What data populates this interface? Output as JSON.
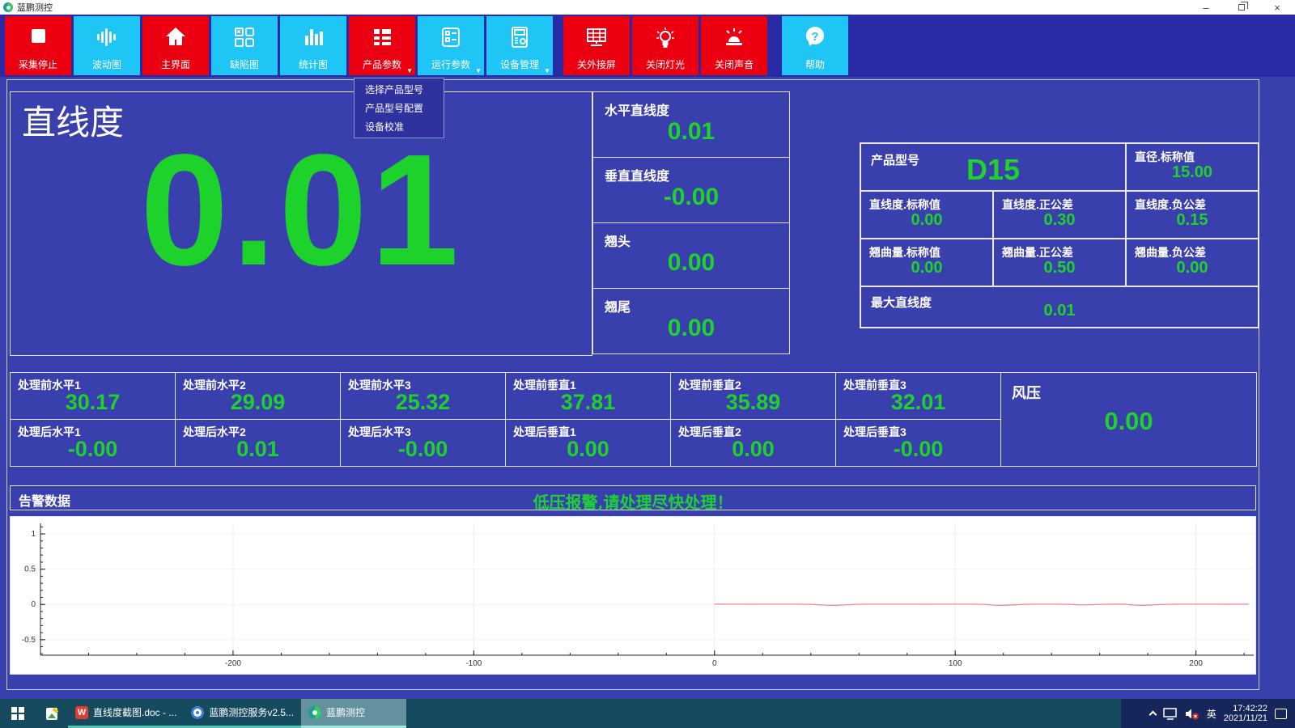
{
  "window": {
    "title": "蓝鹏测控"
  },
  "colors": {
    "button_red": "#eb0011",
    "button_cyan": "#1fc6f5",
    "value_green": "#1dd32b",
    "panel_bg": "#3a3fae",
    "toolbar_bg": "#2b2aa6",
    "menu_bg": "#2e319e",
    "alarm_green": "#1fd233",
    "chart_line": "#f08a8a",
    "taskbar_teal": "#164a5e",
    "taskbar_navy": "#17265a"
  },
  "toolbar": {
    "buttons": [
      {
        "label": "采集停止",
        "color": "red",
        "icon": "stop-icon"
      },
      {
        "label": "波动图",
        "color": "cyan",
        "icon": "waveform-icon"
      },
      {
        "label": "主界面",
        "color": "red",
        "icon": "home-icon"
      },
      {
        "label": "缺陷图",
        "color": "cyan",
        "icon": "defect-map-icon"
      },
      {
        "label": "统计图",
        "color": "cyan",
        "icon": "bar-chart-icon"
      },
      {
        "label": "产品参数",
        "color": "red",
        "icon": "product-params-icon",
        "caret": true
      },
      {
        "label": "运行参数",
        "color": "cyan",
        "icon": "run-params-icon",
        "caret": true
      },
      {
        "label": "设备管理",
        "color": "cyan",
        "icon": "device-manage-icon",
        "caret": true
      },
      {
        "label": "关外接屏",
        "color": "red",
        "icon": "external-screen-icon"
      },
      {
        "label": "关闭灯光",
        "color": "red",
        "icon": "light-bulb-icon"
      },
      {
        "label": "关闭声音",
        "color": "red",
        "icon": "siren-icon"
      },
      {
        "label": "帮助",
        "color": "cyan",
        "icon": "help-icon"
      }
    ],
    "caret_glyph": "▼"
  },
  "menu": {
    "items": [
      "选择产品型号",
      "产品型号配置",
      "设备校准"
    ]
  },
  "main": {
    "title": "直线度",
    "big_value": "0.01",
    "side_cells": [
      {
        "label": "水平直线度",
        "value": "0.01"
      },
      {
        "label": "垂直直线度",
        "value": "-0.00"
      },
      {
        "label": "翘头",
        "value": "0.00"
      },
      {
        "label": "翘尾",
        "value": "0.00"
      }
    ],
    "product_table": {
      "model_label": "产品型号",
      "model_value": "D15",
      "cells": [
        {
          "label": "直径.标称值",
          "value": "15.00"
        },
        {
          "label": "直线度.标称值",
          "value": "0.00"
        },
        {
          "label": "直线度.正公差",
          "value": "0.30"
        },
        {
          "label": "直线度.负公差",
          "value": "0.15"
        },
        {
          "label": "翘曲量.标称值",
          "value": "0.00"
        },
        {
          "label": "翘曲量.正公差",
          "value": "0.50"
        },
        {
          "label": "翘曲量.负公差",
          "value": "0.00"
        }
      ],
      "max_label": "最大直线度",
      "max_value": "0.01"
    }
  },
  "grid": {
    "row1": [
      {
        "label": "处理前水平1",
        "value": "30.17"
      },
      {
        "label": "处理前水平2",
        "value": "29.09"
      },
      {
        "label": "处理前水平3",
        "value": "25.32"
      },
      {
        "label": "处理前垂直1",
        "value": "37.81"
      },
      {
        "label": "处理前垂直2",
        "value": "35.89"
      },
      {
        "label": "处理前垂直3",
        "value": "32.01"
      }
    ],
    "row2": [
      {
        "label": "处理后水平1",
        "value": "-0.00"
      },
      {
        "label": "处理后水平2",
        "value": "0.01"
      },
      {
        "label": "处理后水平3",
        "value": "-0.00"
      },
      {
        "label": "处理后垂直1",
        "value": "0.00"
      },
      {
        "label": "处理后垂直2",
        "value": "0.00"
      },
      {
        "label": "处理后垂直3",
        "value": "-0.00"
      }
    ],
    "wind": {
      "label": "风压",
      "value": "0.00"
    }
  },
  "alarm": {
    "label": "告警数据",
    "message": "低压报警,请处理尽快处理！"
  },
  "chart_data": {
    "type": "line",
    "title": "",
    "xlabel": "",
    "ylabel": "",
    "xlim": [
      -280,
      224
    ],
    "ylim": [
      -0.72,
      1.15
    ],
    "x_major_ticks": [
      -200,
      -100,
      0,
      100,
      200
    ],
    "y_major_ticks": [
      -0.5,
      0,
      0.5,
      1
    ],
    "x_minor_step": 20,
    "y_minor_step": 0.1,
    "grid": true,
    "series": [
      {
        "name": "straightness-trace",
        "color": "#f08a8a",
        "points": [
          [
            0,
            0.004
          ],
          [
            8,
            0.004
          ],
          [
            16,
            0.003
          ],
          [
            24,
            0.004
          ],
          [
            32,
            0.004
          ],
          [
            40,
            0.002
          ],
          [
            46,
            -0.01
          ],
          [
            50,
            -0.013
          ],
          [
            54,
            -0.008
          ],
          [
            60,
            0.003
          ],
          [
            70,
            0.004
          ],
          [
            80,
            0.004
          ],
          [
            88,
            0.003
          ],
          [
            96,
            0.004
          ],
          [
            104,
            0.004
          ],
          [
            112,
            0.002
          ],
          [
            116,
            -0.01
          ],
          [
            120,
            -0.012
          ],
          [
            124,
            -0.006
          ],
          [
            130,
            0.003
          ],
          [
            140,
            0.004
          ],
          [
            148,
            0.002
          ],
          [
            152,
            -0.008
          ],
          [
            156,
            -0.004
          ],
          [
            162,
            0.003
          ],
          [
            170,
            0.004
          ],
          [
            174,
            -0.009
          ],
          [
            178,
            -0.012
          ],
          [
            182,
            -0.007
          ],
          [
            188,
            0.002
          ],
          [
            196,
            0.004
          ],
          [
            204,
            0.004
          ],
          [
            212,
            0.003
          ],
          [
            222,
            0.004
          ]
        ]
      }
    ]
  },
  "taskbar": {
    "tasks": [
      {
        "label": "直线度截图.doc - ...",
        "active": false
      },
      {
        "label": "蓝鹏测控服务v2.5...",
        "active": false
      },
      {
        "label": "蓝鹏测控",
        "active": true
      }
    ],
    "tray": {
      "ime": "英",
      "time": "17:42:22",
      "date": "2021/11/21"
    }
  }
}
